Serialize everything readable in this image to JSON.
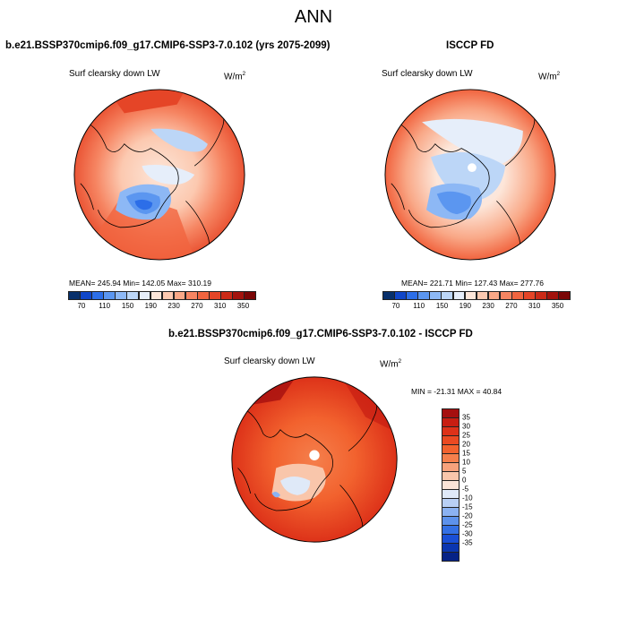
{
  "title": "ANN",
  "panels": [
    {
      "title": "b.e21.BSSP370cmip6.f09_g17.CMIP6-SSP3-7.0.102 (yrs 2075-2099)",
      "variable": "Surf clearsky down LW",
      "units_base": "W/m",
      "units_exp": "2",
      "stats": "MEAN= 245.94  Min= 142.05  Max= 310.19"
    },
    {
      "title": "ISCCP FD",
      "variable": "Surf clearsky down LW",
      "units_base": "W/m",
      "units_exp": "2",
      "stats": "MEAN= 221.71  Min= 127.43  Max= 277.76"
    },
    {
      "title": "b.e21.BSSP370cmip6.f09_g17.CMIP6-SSP3-7.0.102 - ISCCP FD",
      "variable": "Surf clearsky down LW",
      "units_base": "W/m",
      "units_exp": "2",
      "stats": "MIN = -21.31 MAX =  40.84"
    }
  ],
  "colorbar_abs": {
    "labels": [
      "70",
      "110",
      "150",
      "190",
      "230",
      "270",
      "310",
      "350"
    ],
    "colors": [
      "#08306b",
      "#1046c8",
      "#2c6ee8",
      "#5b96f0",
      "#8db8f5",
      "#bcd6f7",
      "#e6eefa",
      "#fde6d9",
      "#fcc9b0",
      "#f9a887",
      "#f68562",
      "#f1643f",
      "#e54527",
      "#cb2a17",
      "#a3130d",
      "#7a0606"
    ]
  },
  "colorbar_diff": {
    "labels": [
      "35",
      "30",
      "25",
      "20",
      "15",
      "10",
      "5",
      "0",
      "-5",
      "-10",
      "-15",
      "-20",
      "-25",
      "-30",
      "-35"
    ],
    "colors": [
      "#a50f0f",
      "#c81e12",
      "#dd3219",
      "#ea4a22",
      "#f2622e",
      "#f57f4c",
      "#f7a27c",
      "#f9c6ab",
      "#fbe4d7",
      "#dfe9f8",
      "#b9d0f5",
      "#8bb2f2",
      "#5d92ec",
      "#3470e4",
      "#1a4fd6",
      "#0b36b0",
      "#062286"
    ]
  },
  "colors": {
    "land_outline": "#000000"
  }
}
